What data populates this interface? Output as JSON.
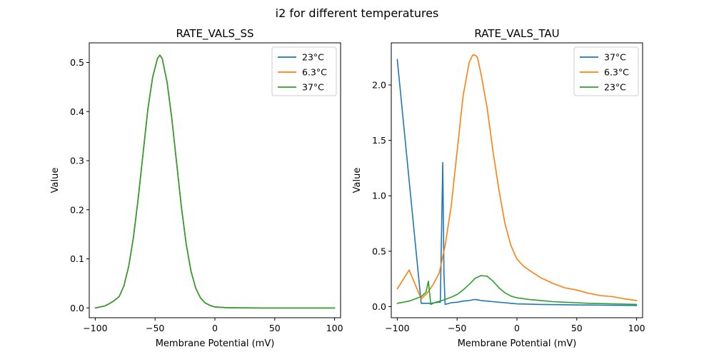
{
  "figure": {
    "suptitle": "i2 for different temperatures"
  },
  "chart_data": [
    {
      "type": "line",
      "title": "RATE_VALS_SS",
      "xlabel": "Membrane Potential (mV)",
      "ylabel": "Value",
      "xlim": [
        -105,
        105
      ],
      "ylim": [
        -0.02,
        0.54
      ],
      "xticks": [
        -100,
        -50,
        0,
        50,
        100
      ],
      "xtick_labels": [
        "−100",
        "−50",
        "0",
        "50",
        "100"
      ],
      "yticks": [
        0.0,
        0.1,
        0.2,
        0.3,
        0.4,
        0.5
      ],
      "ytick_labels": [
        "0.0",
        "0.1",
        "0.2",
        "0.3",
        "0.4",
        "0.5"
      ],
      "legend_position": "top-right",
      "series": [
        {
          "name": "23°C",
          "color": "#1f77b4",
          "x": [
            -100,
            -92,
            -88,
            -84,
            -80,
            -76,
            -72,
            -68,
            -64,
            -60,
            -56,
            -52,
            -48,
            -46,
            -44,
            -40,
            -36,
            -32,
            -28,
            -24,
            -20,
            -16,
            -12,
            -8,
            -4,
            0,
            10,
            20,
            40,
            60,
            80,
            100
          ],
          "y": [
            0.0,
            0.004,
            0.009,
            0.015,
            0.023,
            0.045,
            0.085,
            0.145,
            0.225,
            0.315,
            0.405,
            0.47,
            0.508,
            0.515,
            0.508,
            0.46,
            0.385,
            0.295,
            0.205,
            0.13,
            0.075,
            0.04,
            0.02,
            0.01,
            0.005,
            0.002,
            0.0005,
            0.0001,
            0.0,
            0.0,
            0.0,
            0.0
          ]
        },
        {
          "name": "6.3°C",
          "color": "#ff7f0e",
          "x": [
            -100,
            -92,
            -88,
            -84,
            -80,
            -76,
            -72,
            -68,
            -64,
            -60,
            -56,
            -52,
            -48,
            -46,
            -44,
            -40,
            -36,
            -32,
            -28,
            -24,
            -20,
            -16,
            -12,
            -8,
            -4,
            0,
            10,
            20,
            40,
            60,
            80,
            100
          ],
          "y": [
            0.0,
            0.004,
            0.009,
            0.015,
            0.023,
            0.045,
            0.085,
            0.145,
            0.225,
            0.315,
            0.405,
            0.47,
            0.508,
            0.515,
            0.508,
            0.46,
            0.385,
            0.295,
            0.205,
            0.13,
            0.075,
            0.04,
            0.02,
            0.01,
            0.005,
            0.002,
            0.0005,
            0.0001,
            0.0,
            0.0,
            0.0,
            0.0
          ]
        },
        {
          "name": "37°C",
          "color": "#2ca02c",
          "x": [
            -100,
            -92,
            -88,
            -84,
            -80,
            -76,
            -72,
            -68,
            -64,
            -60,
            -56,
            -52,
            -48,
            -46,
            -44,
            -40,
            -36,
            -32,
            -28,
            -24,
            -20,
            -16,
            -12,
            -8,
            -4,
            0,
            10,
            20,
            40,
            60,
            80,
            100
          ],
          "y": [
            0.0,
            0.004,
            0.009,
            0.015,
            0.023,
            0.045,
            0.085,
            0.145,
            0.225,
            0.315,
            0.405,
            0.47,
            0.508,
            0.515,
            0.508,
            0.46,
            0.385,
            0.295,
            0.205,
            0.13,
            0.075,
            0.04,
            0.02,
            0.01,
            0.005,
            0.002,
            0.0005,
            0.0001,
            0.0,
            0.0,
            0.0,
            0.0
          ]
        }
      ]
    },
    {
      "type": "line",
      "title": "RATE_VALS_TAU",
      "xlabel": "Membrane Potential (mV)",
      "ylabel": "Value",
      "xlim": [
        -105,
        105
      ],
      "ylim": [
        -0.1,
        2.38
      ],
      "xticks": [
        -100,
        -50,
        0,
        50,
        100
      ],
      "xtick_labels": [
        "−100",
        "−50",
        "0",
        "50",
        "100"
      ],
      "yticks": [
        0.0,
        0.5,
        1.0,
        1.5,
        2.0
      ],
      "ytick_labels": [
        "0.0",
        "0.5",
        "1.0",
        "1.5",
        "2.0"
      ],
      "legend_position": "top-right",
      "series": [
        {
          "name": "37°C",
          "color": "#1f77b4",
          "x": [
            -100,
            -80,
            -72,
            -66,
            -64,
            -62,
            -61,
            -60,
            -55,
            -50,
            -45,
            -40,
            -35,
            -32,
            -30,
            -25,
            -20,
            -15,
            -10,
            -5,
            0,
            20,
            50,
            100
          ],
          "y": [
            2.23,
            0.03,
            0.03,
            0.04,
            0.04,
            1.3,
            0.3,
            0.02,
            0.035,
            0.04,
            0.05,
            0.055,
            0.065,
            0.06,
            0.055,
            0.05,
            0.045,
            0.04,
            0.035,
            0.03,
            0.025,
            0.02,
            0.015,
            0.01
          ]
        },
        {
          "name": "6.3°C",
          "color": "#ff7f0e",
          "x": [
            -100,
            -90,
            -80,
            -75,
            -70,
            -65,
            -60,
            -55,
            -50,
            -45,
            -40,
            -37,
            -35,
            -33,
            -30,
            -25,
            -20,
            -15,
            -10,
            -5,
            0,
            5,
            10,
            20,
            30,
            40,
            50,
            60,
            70,
            80,
            90,
            100
          ],
          "y": [
            0.16,
            0.33,
            0.07,
            0.12,
            0.2,
            0.3,
            0.55,
            0.9,
            1.4,
            1.9,
            2.2,
            2.27,
            2.27,
            2.25,
            2.1,
            1.8,
            1.4,
            1.05,
            0.75,
            0.55,
            0.43,
            0.37,
            0.33,
            0.26,
            0.21,
            0.17,
            0.15,
            0.12,
            0.1,
            0.09,
            0.07,
            0.055
          ]
        },
        {
          "name": "23°C",
          "color": "#2ca02c",
          "x": [
            -100,
            -90,
            -85,
            -80,
            -76,
            -74,
            -72,
            -68,
            -64,
            -60,
            -55,
            -50,
            -45,
            -40,
            -35,
            -30,
            -25,
            -20,
            -15,
            -10,
            -5,
            0,
            10,
            20,
            30,
            40,
            50,
            60,
            80,
            100
          ],
          "y": [
            0.03,
            0.05,
            0.07,
            0.09,
            0.13,
            0.23,
            0.02,
            0.04,
            0.05,
            0.065,
            0.085,
            0.11,
            0.15,
            0.2,
            0.255,
            0.28,
            0.275,
            0.23,
            0.17,
            0.125,
            0.095,
            0.08,
            0.065,
            0.055,
            0.045,
            0.04,
            0.035,
            0.03,
            0.025,
            0.02
          ]
        }
      ]
    }
  ]
}
